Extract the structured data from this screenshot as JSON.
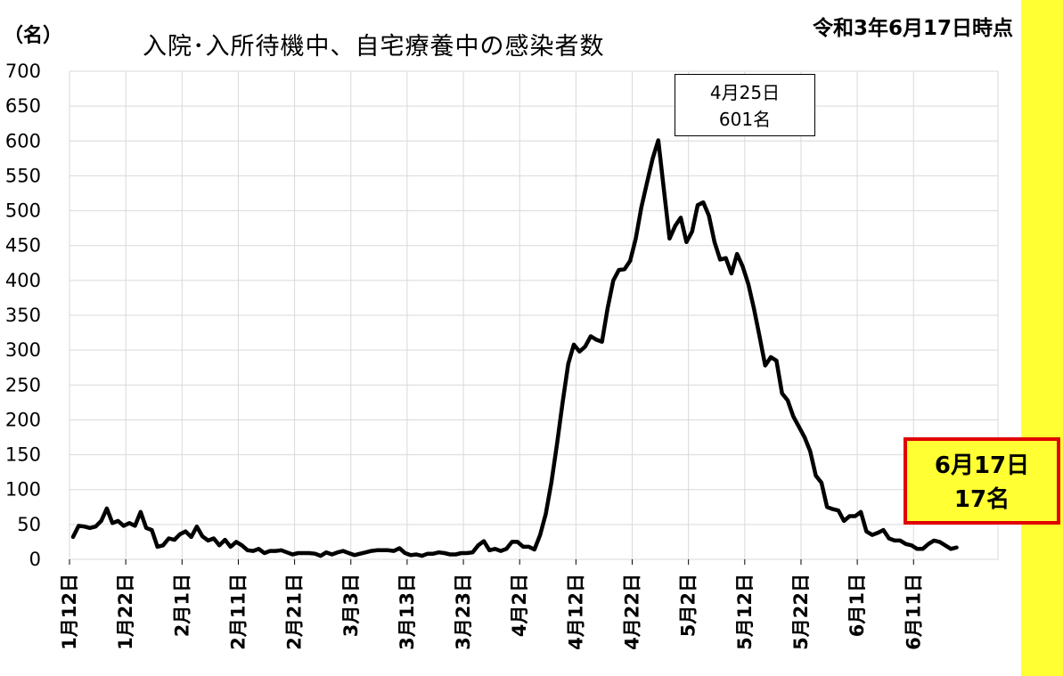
{
  "header": {
    "unit_label": "（名）",
    "title": "入院･入所待機中、自宅療養中の感染者数",
    "as_of": "令和3年6月17日時点"
  },
  "annotations": {
    "peak": {
      "date": "4月25日",
      "value_text": "601名"
    },
    "latest": {
      "date": "6月17日",
      "value_text": "17名"
    }
  },
  "colors": {
    "line": "#000000",
    "grid": "#d9d9d9",
    "highlight_fill": "#ffff33",
    "highlight_border": "#e00000"
  },
  "chart_data": {
    "type": "line",
    "title": "入院･入所待機中、自宅療養中の感染者数",
    "ylabel": "（名）",
    "xlabel": "",
    "ylim": [
      0,
      700
    ],
    "yticks": [
      0,
      50,
      100,
      150,
      200,
      250,
      300,
      350,
      400,
      450,
      500,
      550,
      600,
      650,
      700
    ],
    "x_tick_labels": [
      "1月12日",
      "1月22日",
      "2月1日",
      "2月11日",
      "2月21日",
      "3月3日",
      "3月13日",
      "3月23日",
      "4月2日",
      "4月12日",
      "4月22日",
      "5月2日",
      "5月12日",
      "5月22日",
      "6月1日",
      "6月11日"
    ],
    "x_start": "1月12日",
    "x_end": "6月17日",
    "grid": true,
    "legend": "none",
    "series": [
      {
        "values": [
          32,
          48,
          47,
          45,
          47,
          55,
          73,
          52,
          55,
          48,
          52,
          48,
          68,
          45,
          42,
          18,
          20,
          30,
          28,
          36,
          40,
          32,
          47,
          33,
          27,
          30,
          20,
          28,
          18,
          25,
          20,
          13,
          12,
          15,
          9,
          12,
          12,
          13,
          10,
          7,
          9,
          9,
          9,
          8,
          5,
          10,
          7,
          10,
          12,
          9,
          6,
          8,
          10,
          12,
          13,
          13,
          13,
          12,
          16,
          9,
          6,
          7,
          5,
          8,
          8,
          10,
          9,
          7,
          7,
          9,
          9,
          10,
          20,
          26,
          13,
          15,
          12,
          15,
          25,
          25,
          18,
          18,
          14,
          35,
          65,
          110,
          165,
          225,
          280,
          308,
          298,
          305,
          320,
          315,
          312,
          360,
          400,
          415,
          416,
          428,
          460,
          505,
          540,
          575,
          601,
          530,
          460,
          478,
          490,
          455,
          470,
          508,
          512,
          493,
          455,
          430,
          432,
          410,
          438,
          420,
          395,
          360,
          320,
          278,
          290,
          285,
          238,
          228,
          205,
          190,
          175,
          155,
          120,
          110,
          75,
          72,
          70,
          55,
          62,
          62,
          68,
          40,
          35,
          38,
          42,
          30,
          27,
          27,
          22,
          20,
          15,
          15,
          22,
          27,
          25,
          20,
          15,
          17
        ]
      }
    ]
  }
}
